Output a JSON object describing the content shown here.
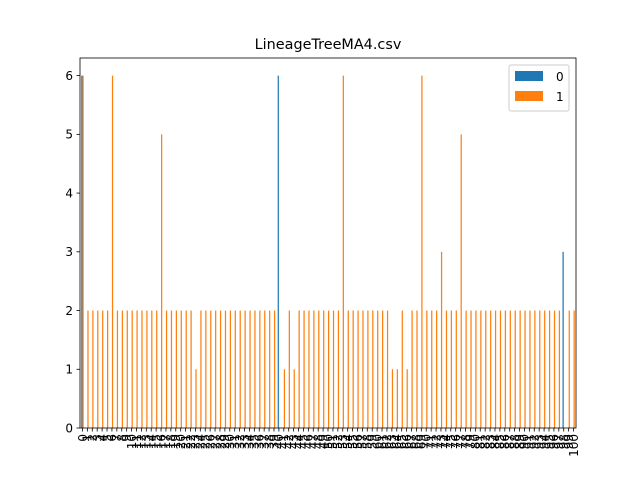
{
  "chart_data": {
    "type": "bar",
    "title": "LineageTreeMA4.csv",
    "xlabel": "",
    "ylabel": "",
    "ylim": [
      0,
      6.3
    ],
    "yticks": [
      0,
      1,
      2,
      3,
      4,
      5,
      6
    ],
    "legend": "top-right",
    "grid": false,
    "categories": [
      "0",
      "1",
      "2",
      "3",
      "4",
      "5",
      "6",
      "7",
      "8",
      "9",
      "10",
      "11",
      "12",
      "13",
      "14",
      "15",
      "16",
      "17",
      "18",
      "19",
      "20",
      "21",
      "22",
      "23",
      "24",
      "25",
      "26",
      "27",
      "28",
      "29",
      "30",
      "31",
      "32",
      "33",
      "34",
      "35",
      "36",
      "37",
      "38",
      "39",
      "40",
      "41",
      "42",
      "43",
      "44",
      "45",
      "46",
      "47",
      "48",
      "49",
      "50",
      "51",
      "52",
      "53",
      "54",
      "55",
      "56",
      "57",
      "58",
      "59",
      "60",
      "61",
      "62",
      "63",
      "64",
      "65",
      "66",
      "67",
      "68",
      "69",
      "70",
      "71",
      "72",
      "73",
      "74",
      "75",
      "76",
      "77",
      "78",
      "79",
      "80",
      "81",
      "82",
      "83",
      "84",
      "85",
      "86",
      "87",
      "88",
      "89",
      "90",
      "91",
      "92",
      "93",
      "94",
      "95",
      "96",
      "97",
      "98",
      "99",
      "100"
    ],
    "series": [
      {
        "name": "0",
        "color": "#1f77b4",
        "values": [
          6,
          0,
          0,
          0,
          0,
          0,
          0,
          0,
          0,
          0,
          0,
          0,
          0,
          0,
          0,
          0,
          0,
          0,
          0,
          0,
          0,
          0,
          0,
          0,
          0,
          0,
          0,
          0,
          0,
          0,
          0,
          0,
          0,
          0,
          0,
          0,
          0,
          0,
          0,
          0,
          6,
          0,
          0,
          0,
          0,
          0,
          0,
          0,
          0,
          0,
          0,
          0,
          0,
          0,
          0,
          0,
          0,
          0,
          0,
          0,
          0,
          0,
          0,
          0,
          0,
          0,
          0,
          0,
          0,
          0,
          0,
          0,
          0,
          0,
          0,
          0,
          0,
          0,
          0,
          0,
          0,
          0,
          0,
          0,
          0,
          0,
          0,
          0,
          0,
          0,
          0,
          0,
          0,
          0,
          0,
          0,
          0,
          0,
          3,
          0,
          0
        ]
      },
      {
        "name": "1",
        "color": "#ff7f0e",
        "values": [
          6,
          2,
          2,
          2,
          2,
          2,
          6,
          2,
          2,
          2,
          2,
          2,
          2,
          2,
          2,
          2,
          5,
          2,
          2,
          2,
          2,
          2,
          2,
          1,
          2,
          2,
          2,
          2,
          2,
          2,
          2,
          2,
          2,
          2,
          2,
          2,
          2,
          2,
          2,
          2,
          0,
          1,
          2,
          1,
          2,
          2,
          2,
          2,
          2,
          2,
          2,
          2,
          2,
          6,
          2,
          2,
          2,
          2,
          2,
          2,
          2,
          2,
          2,
          1,
          1,
          2,
          1,
          2,
          2,
          6,
          2,
          2,
          2,
          3,
          2,
          2,
          2,
          5,
          2,
          2,
          2,
          2,
          2,
          2,
          2,
          2,
          2,
          2,
          2,
          2,
          2,
          2,
          2,
          2,
          2,
          2,
          2,
          2,
          0,
          2,
          2
        ]
      }
    ]
  }
}
